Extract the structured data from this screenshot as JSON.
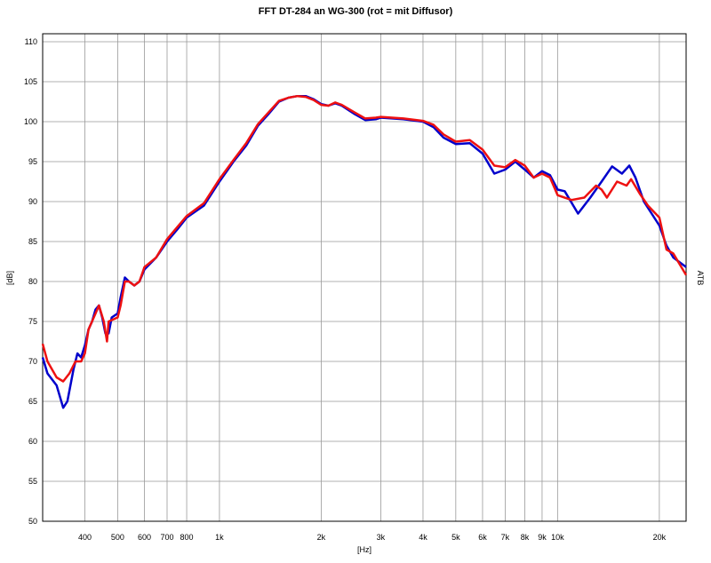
{
  "chart_data": {
    "type": "line",
    "title": "FFT   DT-284 an WG-300  (rot = mit Diffusor)",
    "x_label": "[Hz]",
    "y_label": "[dB]",
    "right_label": "ATB",
    "x_scale": "log",
    "grid": true,
    "xlim": [
      300,
      24000
    ],
    "ylim": [
      50,
      111
    ],
    "xticks": [
      400,
      500,
      600,
      700,
      800,
      {
        "value": 1000,
        "label": "1k"
      },
      {
        "value": 2000,
        "label": "2k"
      },
      {
        "value": 3000,
        "label": "3k"
      },
      {
        "value": 4000,
        "label": "4k"
      },
      {
        "value": 5000,
        "label": "5k"
      },
      {
        "value": 6000,
        "label": "6k"
      },
      {
        "value": 7000,
        "label": "7k"
      },
      {
        "value": 8000,
        "label": "8k"
      },
      {
        "value": 9000,
        "label": "9k"
      },
      {
        "value": 10000,
        "label": "10k"
      },
      {
        "value": 20000,
        "label": "20k"
      }
    ],
    "yticks": [
      50,
      55,
      60,
      65,
      70,
      75,
      80,
      85,
      90,
      95,
      100,
      105,
      110
    ],
    "series": [
      {
        "color": "#0000cc",
        "x": [
          300,
          310,
          330,
          345,
          355,
          370,
          380,
          390,
          400,
          410,
          420,
          430,
          440,
          450,
          460,
          470,
          480,
          500,
          510,
          525,
          540,
          560,
          580,
          600,
          650,
          700,
          750,
          800,
          900,
          1000,
          1100,
          1200,
          1300,
          1400,
          1500,
          1600,
          1700,
          1800,
          1900,
          2000,
          2100,
          2200,
          2300,
          2500,
          2700,
          2900,
          3000,
          3500,
          4000,
          4300,
          4600,
          5000,
          5500,
          6000,
          6500,
          7000,
          7500,
          8000,
          8500,
          9000,
          9500,
          10000,
          10500,
          11500,
          12500,
          13500,
          14500,
          15500,
          16300,
          17000,
          18000,
          20000,
          21000,
          22000,
          24000
        ],
        "values": [
          70.5,
          68.5,
          67,
          64.2,
          65,
          69,
          71,
          70.5,
          72,
          74,
          75,
          76.5,
          77,
          75.5,
          73.5,
          73.5,
          75.5,
          76,
          78,
          80.5,
          80,
          79.5,
          80,
          81.5,
          83,
          85,
          86.5,
          88,
          89.5,
          92.5,
          95,
          97,
          99.5,
          101,
          102.5,
          103,
          103.2,
          103.2,
          102.8,
          102.2,
          102,
          102.3,
          102,
          101,
          100.2,
          100.3,
          100.5,
          100.3,
          100,
          99.3,
          98,
          97.2,
          97.3,
          96,
          93.5,
          94,
          95,
          94,
          93,
          93.8,
          93.3,
          91.5,
          91.3,
          88.5,
          90.5,
          92.5,
          94.4,
          93.5,
          94.5,
          93,
          90,
          87,
          84.5,
          83,
          81.8
        ]
      },
      {
        "color": "#ee1111",
        "x": [
          300,
          310,
          330,
          345,
          360,
          375,
          390,
          400,
          410,
          430,
          440,
          455,
          465,
          470,
          500,
          510,
          525,
          540,
          560,
          580,
          600,
          650,
          700,
          750,
          800,
          900,
          1000,
          1100,
          1200,
          1300,
          1400,
          1500,
          1600,
          1700,
          1800,
          1900,
          2000,
          2100,
          2200,
          2300,
          2500,
          2700,
          2900,
          3000,
          3500,
          4000,
          4300,
          4600,
          5000,
          5500,
          6000,
          6500,
          7000,
          7500,
          8000,
          8500,
          9000,
          9500,
          10000,
          11000,
          12000,
          13000,
          13500,
          14000,
          15000,
          16000,
          16500,
          17500,
          18500,
          20000,
          21000,
          22000,
          24000
        ],
        "values": [
          72.2,
          70,
          68,
          67.5,
          68.5,
          70,
          70,
          71,
          74,
          76,
          77,
          75,
          72.5,
          75,
          75.5,
          77,
          80,
          80,
          79.5,
          80,
          81.8,
          83,
          85.3,
          86.8,
          88.2,
          89.8,
          92.8,
          95.2,
          97.3,
          99.7,
          101.2,
          102.6,
          103,
          103.2,
          103.1,
          102.7,
          102.1,
          102,
          102.4,
          102.1,
          101.2,
          100.4,
          100.5,
          100.6,
          100.4,
          100.1,
          99.6,
          98.4,
          97.5,
          97.7,
          96.5,
          94.5,
          94.3,
          95.2,
          94.5,
          93,
          93.5,
          93,
          90.8,
          90.2,
          90.5,
          92,
          91.5,
          90.5,
          92.5,
          92,
          92.8,
          91,
          89.5,
          88,
          84,
          83.5,
          80.8
        ]
      }
    ]
  }
}
